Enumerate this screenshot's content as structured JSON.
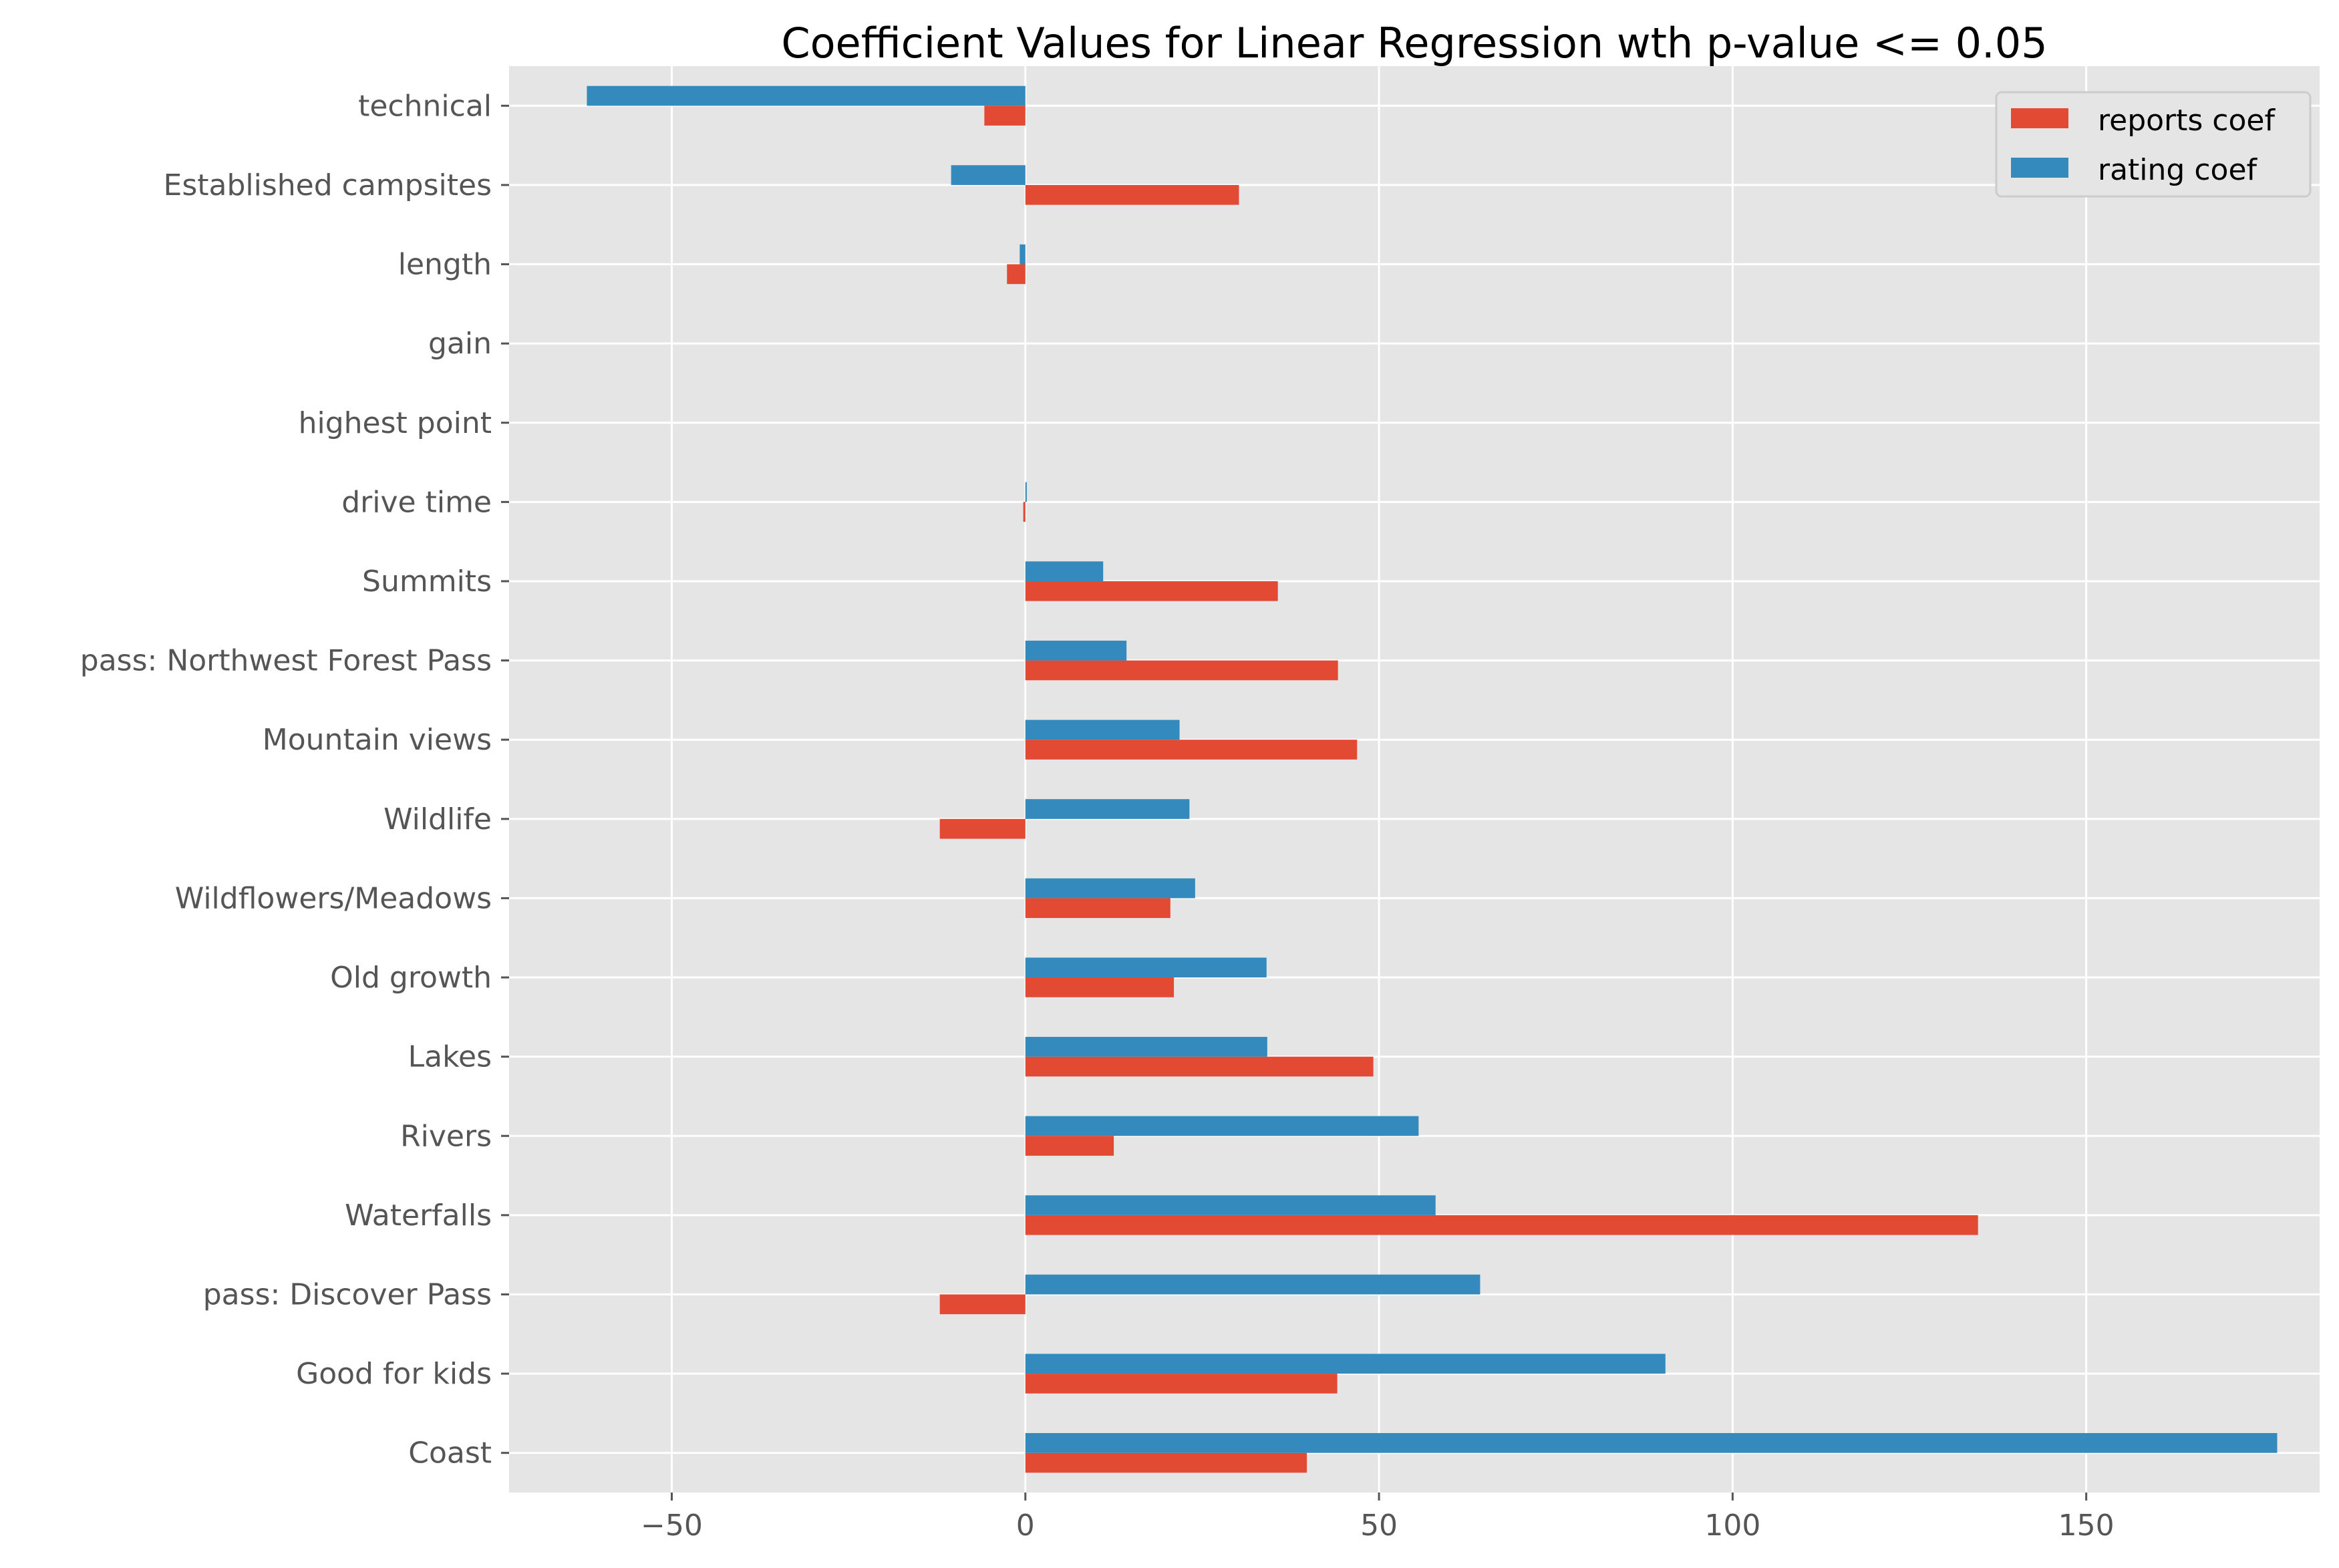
{
  "chart_data": {
    "type": "bar",
    "orientation": "horizontal",
    "title": "Coefficient Values for Linear Regression wth p-value <= 0.05",
    "xlabel": "",
    "ylabel": "",
    "categories": [
      "technical",
      "Established campsites",
      "length",
      "gain",
      "highest point",
      "drive time",
      "Summits",
      "pass: Northwest Forest Pass",
      "Mountain views",
      "Wildlife",
      "Wildflowers/Meadows",
      "Old growth",
      "Lakes",
      "Rivers",
      "Waterfalls",
      "pass: Discover Pass",
      "Good for kids",
      "Coast"
    ],
    "series": [
      {
        "name": "reports coef",
        "color": "#E24A33",
        "values": [
          -5.8,
          30.2,
          -2.6,
          0.0,
          0.0,
          -0.3,
          35.7,
          44.2,
          46.9,
          -12.1,
          20.5,
          21.0,
          49.2,
          12.5,
          134.7,
          -12.1,
          44.1,
          39.8
        ]
      },
      {
        "name": "rating coef",
        "color": "#348ABD",
        "values": [
          -62.0,
          -10.5,
          -0.8,
          0.0,
          0.0,
          0.2,
          11.0,
          14.3,
          21.8,
          23.2,
          24.0,
          34.1,
          34.2,
          55.6,
          58.0,
          64.3,
          90.5,
          177.0
        ]
      }
    ],
    "xlim": [
      -73,
      183
    ],
    "xticks": [
      -50,
      0,
      50,
      100,
      150
    ],
    "xtick_labels": [
      "−50",
      "0",
      "50",
      "100",
      "150"
    ],
    "grid": true,
    "legend_position": "top-right",
    "style": {
      "background": "#E5E5E5",
      "grid_color": "#FFFFFF",
      "tick_color": "#555555"
    }
  }
}
